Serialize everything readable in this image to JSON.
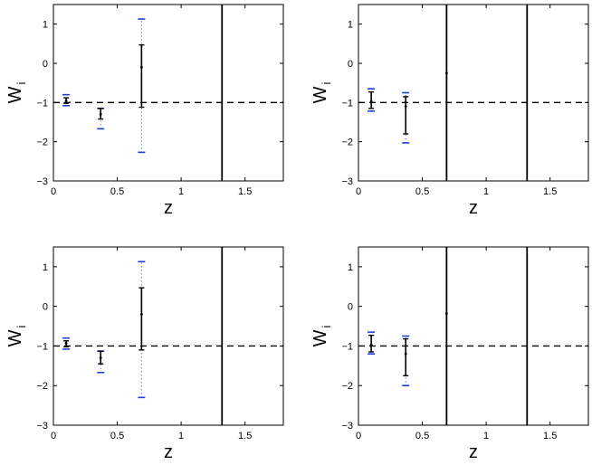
{
  "chart_data": [
    {
      "type": "errorbar",
      "xlabel": "z",
      "ylabel": "W",
      "ylabel_sub": "i",
      "xlim": [
        0,
        1.8
      ],
      "ylim": [
        -3,
        1.5
      ],
      "xticks": [
        0,
        0.5,
        1,
        1.5
      ],
      "xtick_labels": [
        "0",
        "0.5",
        "1",
        "1.5"
      ],
      "yticks": [
        1,
        0,
        -1,
        -2,
        -3
      ],
      "ytick_labels": [
        "1",
        "0",
        "−1",
        "−2",
        "−3"
      ],
      "reference_line_y": -1,
      "vertical_lines_x": [
        1.32
      ],
      "points": [
        {
          "x": 0.1,
          "y": -0.95,
          "inner": [
            -1.02,
            -0.88
          ],
          "outer": [
            -1.08,
            -0.8
          ]
        },
        {
          "x": 0.37,
          "y": -1.3,
          "inner": [
            -1.42,
            -1.15
          ],
          "outer": [
            -1.67,
            -1.15
          ]
        },
        {
          "x": 0.69,
          "y": -0.1,
          "inner": [
            -1.12,
            0.47
          ],
          "outer": [
            -2.27,
            1.13
          ]
        }
      ],
      "colors": {
        "inner": "#000000",
        "outer": "#1f3fd8"
      }
    },
    {
      "type": "errorbar",
      "xlabel": "z",
      "ylabel": "W",
      "ylabel_sub": "i",
      "xlim": [
        0,
        1.8
      ],
      "ylim": [
        -3,
        1.5
      ],
      "xticks": [
        0,
        0.5,
        1,
        1.5
      ],
      "xtick_labels": [
        "0",
        "0.5",
        "1",
        "1.5"
      ],
      "yticks": [
        1,
        0,
        -1,
        -2,
        -3
      ],
      "ytick_labels": [
        "1",
        "0",
        "−1",
        "−2",
        "−3"
      ],
      "reference_line_y": -1,
      "vertical_lines_x": [
        0.69,
        1.32
      ],
      "points": [
        {
          "x": 0.1,
          "y": -0.97,
          "inner": [
            -1.15,
            -0.73
          ],
          "outer": [
            -1.22,
            -0.65
          ]
        },
        {
          "x": 0.37,
          "y": -1.1,
          "inner": [
            -1.8,
            -0.85
          ],
          "outer": [
            -2.03,
            -0.75
          ]
        },
        {
          "x": 0.69,
          "y": -0.25
        }
      ],
      "colors": {
        "inner": "#000000",
        "outer": "#1f3fd8"
      }
    },
    {
      "type": "errorbar",
      "xlabel": "z",
      "ylabel": "W",
      "ylabel_sub": "i",
      "xlim": [
        0,
        1.8
      ],
      "ylim": [
        -3,
        1.5
      ],
      "xticks": [
        0,
        0.5,
        1,
        1.5
      ],
      "xtick_labels": [
        "0",
        "0.5",
        "1",
        "1.5"
      ],
      "yticks": [
        1,
        0,
        -1,
        -2,
        -3
      ],
      "ytick_labels": [
        "1",
        "0",
        "−1",
        "−2",
        "−3"
      ],
      "reference_line_y": -1,
      "vertical_lines_x": [
        1.32
      ],
      "points": [
        {
          "x": 0.1,
          "y": -0.93,
          "inner": [
            -1.02,
            -0.87
          ],
          "outer": [
            -1.08,
            -0.8
          ]
        },
        {
          "x": 0.37,
          "y": -1.3,
          "inner": [
            -1.45,
            -1.13
          ],
          "outer": [
            -1.67,
            -1.13
          ]
        },
        {
          "x": 0.69,
          "y": -0.2,
          "inner": [
            -1.1,
            0.47
          ],
          "outer": [
            -2.3,
            1.13
          ]
        }
      ],
      "colors": {
        "inner": "#000000",
        "outer": "#1f3fd8"
      }
    },
    {
      "type": "errorbar",
      "xlabel": "z",
      "ylabel": "W",
      "ylabel_sub": "i",
      "xlim": [
        0,
        1.8
      ],
      "ylim": [
        -3,
        1.5
      ],
      "xticks": [
        0,
        0.5,
        1,
        1.5
      ],
      "xtick_labels": [
        "0",
        "0.5",
        "1",
        "1.5"
      ],
      "yticks": [
        1,
        0,
        -1,
        -2,
        -3
      ],
      "ytick_labels": [
        "1",
        "0",
        "−1",
        "−2",
        "−3"
      ],
      "reference_line_y": -1,
      "vertical_lines_x": [
        0.69,
        1.32
      ],
      "points": [
        {
          "x": 0.1,
          "y": -0.97,
          "inner": [
            -1.15,
            -0.73
          ],
          "outer": [
            -1.2,
            -0.65
          ]
        },
        {
          "x": 0.37,
          "y": -1.2,
          "inner": [
            -1.75,
            -0.82
          ],
          "outer": [
            -2.0,
            -0.75
          ]
        },
        {
          "x": 0.69,
          "y": -0.18
        }
      ],
      "colors": {
        "inner": "#000000",
        "outer": "#1f3fd8"
      }
    }
  ]
}
